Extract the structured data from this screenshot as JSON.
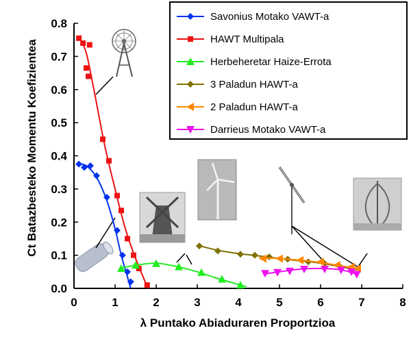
{
  "chart_data": {
    "type": "line",
    "xlabel": "λ Puntako Abiaduraren Proportzioa",
    "ylabel": "Ct Batazbesteko Momentu Koefizientea",
    "xlim": [
      0,
      8
    ],
    "ylim": [
      0,
      0.8
    ],
    "x_ticks": [
      "0",
      "1",
      "2",
      "3",
      "4",
      "5",
      "6",
      "7",
      "8"
    ],
    "y_ticks": [
      "0.0",
      "0.1",
      "0.2",
      "0.3",
      "0.4",
      "0.5",
      "0.6",
      "0.7",
      "0.8"
    ],
    "legend_position": "top-right",
    "series": [
      {
        "name": "Savonius Motako VAWT-a",
        "color": "#0033ee",
        "marker": "diamond",
        "points": [
          [
            0.12,
            0.375
          ],
          [
            0.25,
            0.365
          ],
          [
            0.4,
            0.37
          ],
          [
            0.55,
            0.34
          ],
          [
            0.8,
            0.275
          ],
          [
            1.05,
            0.175
          ],
          [
            1.18,
            0.1
          ],
          [
            1.3,
            0.05
          ],
          [
            1.38,
            0.02
          ]
        ],
        "curve": [
          [
            0.1,
            0.375
          ],
          [
            0.3,
            0.37
          ],
          [
            0.55,
            0.335
          ],
          [
            0.8,
            0.265
          ],
          [
            1.0,
            0.18
          ],
          [
            1.15,
            0.1
          ],
          [
            1.3,
            0.035
          ],
          [
            1.38,
            0.0
          ]
        ]
      },
      {
        "name": "HAWT Multipala",
        "color": "#ee1111",
        "marker": "square",
        "points": [
          [
            0.12,
            0.755
          ],
          [
            0.22,
            0.74
          ],
          [
            0.38,
            0.735
          ],
          [
            0.3,
            0.665
          ],
          [
            0.35,
            0.64
          ],
          [
            0.7,
            0.45
          ],
          [
            0.85,
            0.385
          ],
          [
            1.05,
            0.28
          ],
          [
            1.15,
            0.235
          ],
          [
            1.3,
            0.15
          ],
          [
            1.45,
            0.1
          ],
          [
            1.58,
            0.06
          ],
          [
            1.78,
            0.01
          ]
        ],
        "curve": [
          [
            0.12,
            0.76
          ],
          [
            0.3,
            0.71
          ],
          [
            0.5,
            0.59
          ],
          [
            0.75,
            0.43
          ],
          [
            1.0,
            0.3
          ],
          [
            1.25,
            0.18
          ],
          [
            1.5,
            0.09
          ],
          [
            1.8,
            0.0
          ]
        ]
      },
      {
        "name": "Herbeheretar Haize-Errota",
        "color": "#22ee22",
        "marker": "triangle",
        "points": [
          [
            1.15,
            0.06
          ],
          [
            1.5,
            0.07
          ],
          [
            2.0,
            0.075
          ],
          [
            2.55,
            0.065
          ],
          [
            3.1,
            0.048
          ],
          [
            3.6,
            0.028
          ],
          [
            4.05,
            0.01
          ]
        ],
        "curve": [
          [
            1.1,
            0.06
          ],
          [
            1.5,
            0.07
          ],
          [
            2.0,
            0.076
          ],
          [
            2.5,
            0.066
          ],
          [
            3.0,
            0.05
          ],
          [
            3.5,
            0.03
          ],
          [
            4.0,
            0.012
          ],
          [
            4.2,
            0.005
          ]
        ]
      },
      {
        "name": "3 Paladun HAWT-a",
        "color": "#807000",
        "marker": "diamond",
        "points": [
          [
            3.05,
            0.128
          ],
          [
            3.5,
            0.113
          ],
          [
            4.05,
            0.103
          ],
          [
            4.4,
            0.1
          ],
          [
            4.75,
            0.095
          ],
          [
            5.2,
            0.088
          ],
          [
            5.7,
            0.08
          ],
          [
            6.1,
            0.075
          ],
          [
            6.5,
            0.063
          ]
        ],
        "curve": [
          [
            3.0,
            0.13
          ],
          [
            3.5,
            0.115
          ],
          [
            4.0,
            0.105
          ],
          [
            4.5,
            0.098
          ],
          [
            5.0,
            0.09
          ],
          [
            5.5,
            0.083
          ],
          [
            6.0,
            0.076
          ],
          [
            6.5,
            0.065
          ],
          [
            6.8,
            0.058
          ]
        ]
      },
      {
        "name": "2 Paladun HAWT-a",
        "color": "#ff8800",
        "marker": "left-triangle",
        "points": [
          [
            4.6,
            0.09
          ],
          [
            5.0,
            0.09
          ],
          [
            5.5,
            0.085
          ],
          [
            6.0,
            0.08
          ],
          [
            6.4,
            0.07
          ],
          [
            6.75,
            0.065
          ],
          [
            6.9,
            0.06
          ]
        ],
        "curve": [
          [
            4.5,
            0.092
          ],
          [
            5.0,
            0.09
          ],
          [
            5.5,
            0.085
          ],
          [
            6.0,
            0.078
          ],
          [
            6.5,
            0.068
          ],
          [
            6.9,
            0.06
          ]
        ]
      },
      {
        "name": "Darrieus Motako VAWT-a",
        "color": "#ee11ee",
        "marker": "down-triangle",
        "points": [
          [
            4.65,
            0.045
          ],
          [
            4.95,
            0.048
          ],
          [
            5.25,
            0.052
          ],
          [
            5.6,
            0.058
          ],
          [
            6.1,
            0.058
          ],
          [
            6.5,
            0.055
          ],
          [
            6.75,
            0.05
          ],
          [
            6.88,
            0.042
          ]
        ],
        "curve": [
          [
            4.6,
            0.043
          ],
          [
            5.0,
            0.05
          ],
          [
            5.5,
            0.058
          ],
          [
            6.0,
            0.06
          ],
          [
            6.5,
            0.056
          ],
          [
            6.9,
            0.042
          ]
        ]
      }
    ]
  }
}
